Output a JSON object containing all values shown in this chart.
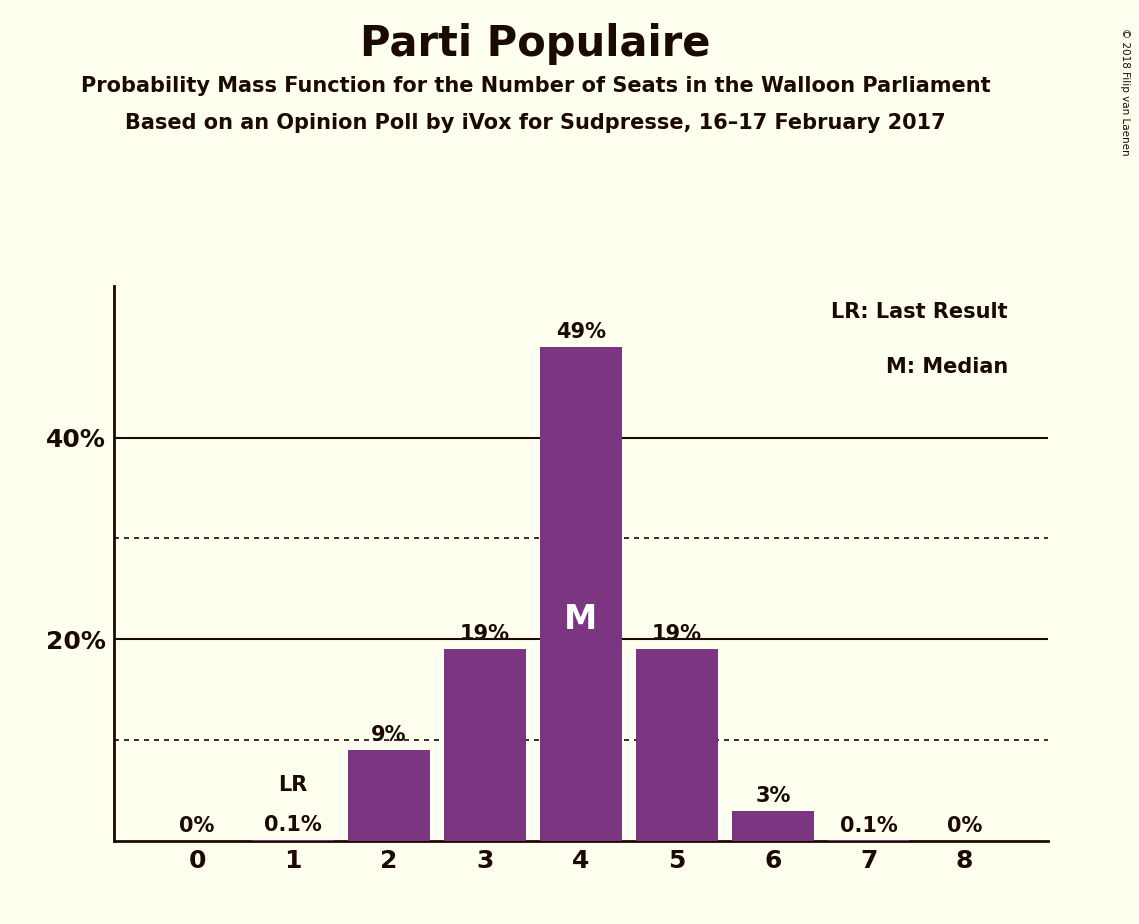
{
  "title": "Parti Populaire",
  "subtitle1": "Probability Mass Function for the Number of Seats in the Walloon Parliament",
  "subtitle2": "Based on an Opinion Poll by iVox for Sudpresse, 16–17 February 2017",
  "copyright": "© 2018 Filip van Laenen",
  "categories": [
    0,
    1,
    2,
    3,
    4,
    5,
    6,
    7,
    8
  ],
  "values": [
    0.0,
    0.1,
    9.0,
    19.0,
    49.0,
    19.0,
    3.0,
    0.1,
    0.0
  ],
  "labels": [
    "0%",
    "0.1%",
    "9%",
    "19%",
    "49%",
    "19%",
    "3%",
    "0.1%",
    "0%"
  ],
  "bar_color": "#7b3581",
  "background_color": "#fffff0",
  "text_color": "#1a0a00",
  "median_bar": 4,
  "lr_bar": 1,
  "legend_lr": "LR: Last Result",
  "legend_m": "M: Median",
  "solid_gridlines": [
    20,
    40
  ],
  "dotted_gridlines": [
    10,
    30
  ],
  "ylim": [
    0,
    55
  ]
}
